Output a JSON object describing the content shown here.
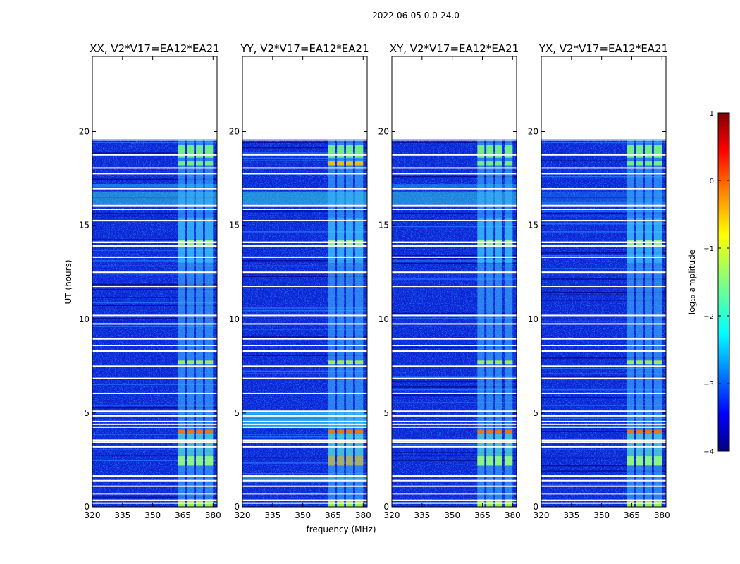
{
  "figure": {
    "suptitle": "2022-06-05 0.0-24.0",
    "ylabel": "UT (hours)",
    "xlabel": "frequency (MHz)"
  },
  "colors": {
    "background": "#ffffff",
    "axis": "#000000",
    "jet": [
      "#00007f",
      "#0000ff",
      "#0080ff",
      "#00ffff",
      "#80ff80",
      "#ffff00",
      "#ff8000",
      "#ff0000",
      "#7f0000"
    ]
  },
  "chart_data": {
    "type": "heatmap",
    "suptitle": "2022-06-05 0.0-24.0",
    "xlabel": "frequency (MHz)",
    "ylabel": "UT (hours)",
    "xlim": [
      320,
      382
    ],
    "ylim": [
      0,
      24
    ],
    "x_ticks": [
      320,
      335,
      350,
      365,
      380
    ],
    "x_tick_labels": [
      "320",
      "335",
      "350",
      "365",
      "380"
    ],
    "y_ticks": [
      0,
      5,
      10,
      15,
      20
    ],
    "y_tick_labels": [
      "0",
      "5",
      "10",
      "15",
      "20"
    ],
    "data_extent_hours": [
      0,
      19.6
    ],
    "band_rfi_freq_MHz": [
      362.5,
      380.5
    ],
    "rfi_subbands_MHz": [
      [
        362.5,
        366
      ],
      [
        367,
        370.5
      ],
      [
        371.5,
        375
      ],
      [
        376,
        380
      ]
    ],
    "panels": [
      {
        "title": "XX, V2*V17=EA12*EA21",
        "product": "XX"
      },
      {
        "title": "YY, V2*V17=EA12*EA21",
        "product": "YY"
      },
      {
        "title": "XY, V2*V17=EA12*EA21",
        "product": "XY"
      },
      {
        "title": "YX, V2*V17=EA12*EA21",
        "product": "YX"
      }
    ],
    "flagged_hours": [
      0.2,
      0.35,
      0.7,
      1.1,
      1.4,
      1.65,
      3.2,
      3.45,
      3.55,
      4.25,
      4.4,
      4.55,
      4.85,
      5.1,
      6.05,
      6.85,
      7.5,
      8.3,
      8.6,
      8.95,
      9.75,
      10.2,
      11.75,
      12.5,
      13.3,
      13.9,
      14.1,
      15.25,
      15.85,
      16.05,
      16.95,
      17.75,
      18.05,
      18.75,
      19.55
    ],
    "colorbar": {
      "label": "log₁₀ amplitude",
      "range": [
        -4,
        1
      ],
      "ticks": [
        1,
        0,
        -1,
        -2,
        -3,
        -4
      ],
      "tick_labels": [
        "1",
        "0",
        "−1",
        "−2",
        "−3",
        "−4"
      ]
    }
  }
}
